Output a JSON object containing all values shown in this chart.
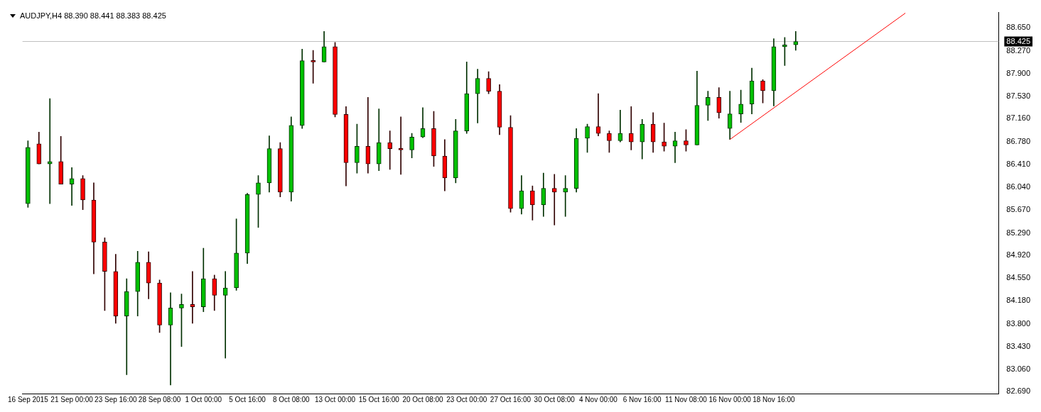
{
  "chart_data": {
    "type": "candlestick",
    "title": "AUDJPY,H4  88.390 88.441 88.383 88.425",
    "categories": [
      "16 Sep 2015",
      null,
      null,
      null,
      "21 Sep 00:00",
      null,
      null,
      null,
      "23 Sep 16:00",
      null,
      null,
      null,
      "28 Sep 08:00",
      null,
      null,
      null,
      "1 Oct 00:00",
      null,
      null,
      null,
      "5 Oct 16:00",
      null,
      null,
      null,
      "8 Oct 08:00",
      null,
      null,
      null,
      "13 Oct 00:00",
      null,
      null,
      null,
      "15 Oct 16:00",
      null,
      null,
      null,
      "20 Oct 08:00",
      null,
      null,
      null,
      "23 Oct 00:00",
      null,
      null,
      null,
      "27 Oct 16:00",
      null,
      null,
      null,
      "30 Oct 08:00",
      null,
      null,
      null,
      "4 Nov 00:00",
      null,
      null,
      null,
      "6 Nov 16:00",
      null,
      null,
      null,
      "11 Nov 08:00",
      null,
      null,
      null,
      "16 Nov 00:00",
      null,
      null,
      null,
      "18 Nov 16:00",
      null,
      null,
      null,
      null,
      null,
      null,
      null,
      null,
      null,
      null,
      null,
      null,
      null,
      null,
      null,
      null,
      null,
      null,
      null,
      null
    ],
    "ohlc": [
      [
        85.77,
        86.8,
        85.71,
        86.69
      ],
      [
        86.75,
        86.94,
        86.42,
        86.42
      ],
      [
        86.42,
        87.49,
        85.77,
        86.46
      ],
      [
        86.46,
        86.87,
        86.09,
        86.09
      ],
      [
        86.09,
        86.36,
        85.74,
        86.18
      ],
      [
        86.18,
        86.23,
        85.67,
        85.83
      ],
      [
        85.83,
        86.11,
        84.62,
        85.14
      ],
      [
        85.14,
        85.21,
        84.02,
        84.66
      ],
      [
        84.66,
        84.94,
        83.81,
        83.93
      ],
      [
        83.93,
        84.54,
        82.97,
        84.33
      ],
      [
        84.33,
        84.99,
        83.93,
        84.81
      ],
      [
        84.81,
        84.98,
        84.21,
        84.47
      ],
      [
        84.47,
        84.52,
        83.66,
        83.78
      ],
      [
        83.78,
        84.31,
        82.8,
        84.06
      ],
      [
        84.06,
        84.29,
        83.43,
        84.12
      ],
      [
        84.12,
        84.66,
        83.81,
        84.08
      ],
      [
        84.08,
        85.04,
        84.0,
        84.54
      ],
      [
        84.54,
        84.6,
        84.02,
        84.27
      ],
      [
        84.27,
        84.66,
        83.24,
        84.39
      ],
      [
        84.39,
        85.52,
        84.35,
        84.96
      ],
      [
        84.96,
        85.94,
        84.79,
        85.92
      ],
      [
        85.92,
        86.23,
        85.38,
        86.11
      ],
      [
        86.11,
        86.88,
        85.96,
        86.67
      ],
      [
        86.67,
        86.77,
        85.88,
        85.96
      ],
      [
        85.96,
        87.19,
        85.81,
        87.05
      ],
      [
        87.05,
        88.3,
        87.0,
        88.11
      ],
      [
        88.11,
        88.28,
        87.74,
        88.09
      ],
      [
        88.09,
        88.59,
        88.09,
        88.34
      ],
      [
        88.34,
        88.41,
        87.19,
        87.23
      ],
      [
        87.23,
        87.36,
        86.06,
        86.44
      ],
      [
        86.44,
        87.07,
        86.27,
        86.71
      ],
      [
        86.71,
        87.51,
        86.27,
        86.42
      ],
      [
        86.42,
        87.32,
        86.31,
        86.77
      ],
      [
        86.77,
        86.96,
        86.33,
        86.67
      ],
      [
        86.67,
        87.19,
        86.25,
        86.65
      ],
      [
        86.65,
        86.92,
        86.52,
        86.86
      ],
      [
        86.86,
        87.34,
        86.85,
        87.0
      ],
      [
        87.0,
        87.28,
        86.38,
        86.55
      ],
      [
        86.55,
        86.82,
        85.98,
        86.19
      ],
      [
        86.19,
        87.15,
        86.11,
        86.96
      ],
      [
        86.96,
        88.09,
        86.92,
        87.57
      ],
      [
        87.57,
        87.97,
        87.09,
        87.82
      ],
      [
        87.82,
        87.93,
        87.57,
        87.61
      ],
      [
        87.61,
        87.72,
        86.9,
        87.02
      ],
      [
        87.02,
        87.21,
        85.63,
        85.69
      ],
      [
        85.69,
        86.23,
        85.6,
        85.98
      ],
      [
        85.98,
        86.06,
        85.5,
        85.75
      ],
      [
        85.75,
        86.27,
        85.56,
        86.02
      ],
      [
        86.02,
        86.25,
        85.42,
        85.96
      ],
      [
        85.96,
        86.23,
        85.56,
        86.02
      ],
      [
        86.02,
        87.0,
        85.96,
        86.84
      ],
      [
        86.84,
        87.07,
        86.61,
        87.03
      ],
      [
        87.03,
        87.57,
        86.88,
        86.92
      ],
      [
        86.92,
        86.96,
        86.61,
        86.8
      ],
      [
        86.8,
        87.3,
        86.78,
        86.92
      ],
      [
        86.92,
        87.36,
        86.65,
        86.78
      ],
      [
        86.78,
        87.15,
        86.5,
        87.07
      ],
      [
        87.07,
        87.26,
        86.61,
        86.78
      ],
      [
        86.78,
        87.09,
        86.63,
        86.71
      ],
      [
        86.71,
        86.94,
        86.44,
        86.8
      ],
      [
        86.8,
        86.98,
        86.63,
        86.73
      ],
      [
        86.73,
        87.94,
        86.73,
        87.38
      ],
      [
        87.38,
        87.61,
        87.13,
        87.51
      ],
      [
        87.51,
        87.67,
        87.17,
        87.26
      ],
      [
        87.0,
        87.61,
        86.82,
        87.24
      ],
      [
        87.24,
        87.63,
        87.1,
        87.4
      ],
      [
        87.4,
        87.99,
        87.24,
        87.78
      ],
      [
        87.78,
        87.8,
        87.42,
        87.62
      ],
      [
        87.62,
        88.47,
        87.37,
        88.34
      ],
      [
        88.34,
        88.49,
        88.03,
        88.37
      ],
      [
        88.37,
        88.59,
        88.28,
        88.425
      ],
      null,
      null,
      null,
      null,
      null,
      null,
      null,
      null,
      null,
      null,
      null,
      null,
      null,
      null,
      null,
      null,
      null,
      null
    ],
    "series": [
      {
        "type": "line",
        "color": "#ff0000",
        "values": [
          null,
          null,
          null,
          null,
          null,
          null,
          null,
          null,
          null,
          null,
          null,
          null,
          null,
          null,
          null,
          null,
          null,
          null,
          null,
          null,
          null,
          null,
          null,
          null,
          null,
          null,
          null,
          null,
          null,
          null,
          null,
          null,
          null,
          null,
          null,
          null,
          null,
          null,
          null,
          null,
          null,
          null,
          null,
          null,
          null,
          null,
          null,
          null,
          null,
          null,
          null,
          null,
          null,
          null,
          null,
          null,
          null,
          null,
          null,
          null,
          null,
          null,
          null,
          null,
          86.82,
          null,
          null,
          null,
          null,
          null,
          null,
          null,
          null,
          null,
          null,
          null,
          null,
          null,
          null,
          null,
          88.89,
          null,
          null,
          null,
          null,
          null,
          null,
          null,
          null
        ]
      }
    ],
    "ylim": [
      82.66,
      88.9
    ],
    "yticks": [
      {
        "value": 82.69,
        "label": "82.690"
      },
      {
        "value": 83.06,
        "label": "83.060"
      },
      {
        "value": 83.43,
        "label": "83.430"
      },
      {
        "value": 83.8,
        "label": "83.800"
      },
      {
        "value": 84.18,
        "label": "84.180"
      },
      {
        "value": 84.55,
        "label": "84.550"
      },
      {
        "value": 84.92,
        "label": "84.920"
      },
      {
        "value": 85.29,
        "label": "85.290"
      },
      {
        "value": 85.67,
        "label": "85.670"
      },
      {
        "value": 86.04,
        "label": "86.040"
      },
      {
        "value": 86.41,
        "label": "86.410"
      },
      {
        "value": 86.78,
        "label": "86.780"
      },
      {
        "value": 87.16,
        "label": "87.160"
      },
      {
        "value": 87.53,
        "label": "87.530"
      },
      {
        "value": 87.9,
        "label": "87.900"
      },
      {
        "value": 88.27,
        "label": "88.270"
      },
      {
        "value": 88.65,
        "label": "88.650"
      }
    ],
    "ref_lines": [
      {
        "axis": "y",
        "value": 88.425,
        "label": "88.425",
        "color": "#c0c0c0"
      }
    ],
    "grid": false,
    "legend": false
  }
}
